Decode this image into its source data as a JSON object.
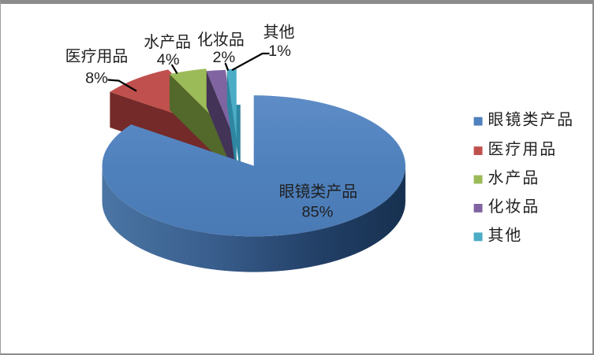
{
  "window": {
    "background": "#ffffff",
    "top_bar_color": "#8c8c8c",
    "border_color": "#8c8c8c"
  },
  "chart_data": {
    "type": "pie",
    "style": "3d-exploded-pie",
    "title": "",
    "categories": [
      "眼镜类产品",
      "医疗用品",
      "水产品",
      "化妆品",
      "其他"
    ],
    "values": [
      85,
      8,
      4,
      2,
      1
    ],
    "unit": "%",
    "start_angle_deg": 0,
    "direction": "clockwise",
    "colors": [
      "#4F81BD",
      "#C0504D",
      "#9BBB59",
      "#8064A2",
      "#4BACC6"
    ],
    "side_colors": [
      "#1B3A5F",
      "#742A28",
      "#53682B",
      "#433357",
      "#2E86A0"
    ],
    "legend_position": "right",
    "legend_entries": [
      "眼镜类产品",
      "医疗用品",
      "水产品",
      "化妆品",
      "其他"
    ],
    "labels": {
      "eyewear": {
        "name": "眼镜类产品",
        "pct": "85%",
        "placement": "inside"
      },
      "medical": {
        "name": "医疗用品",
        "pct": "8%",
        "placement": "outside"
      },
      "aquatic": {
        "name": "水产品",
        "pct": "4%",
        "placement": "outside"
      },
      "cosmetics": {
        "name": "化妆品",
        "pct": "2%",
        "placement": "outside"
      },
      "other": {
        "name": "其他",
        "pct": "1%",
        "placement": "outside"
      }
    }
  }
}
